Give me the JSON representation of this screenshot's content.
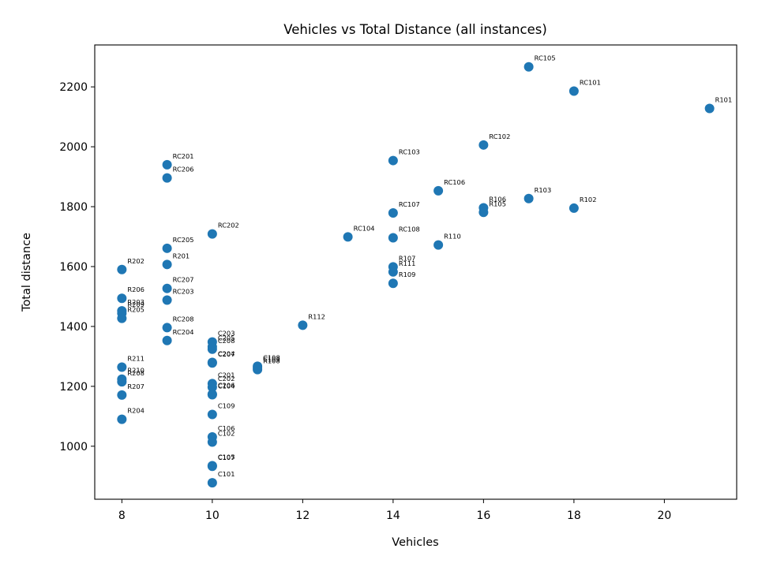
{
  "chart_data": {
    "type": "scatter",
    "title": "Vehicles vs Total Distance (all instances)",
    "xlabel": "Vehicles",
    "ylabel": "Total distance",
    "xlim": [
      7.4,
      21.6
    ],
    "ylim": [
      823,
      2340
    ],
    "xticks": [
      8,
      10,
      12,
      14,
      16,
      18,
      20
    ],
    "yticks": [
      1000,
      1200,
      1400,
      1600,
      1800,
      2000,
      2200
    ],
    "grid": false,
    "legend": "none",
    "marker_color": "#1f77b4",
    "points": [
      {
        "label": "RC105",
        "x": 17,
        "y": 2267
      },
      {
        "label": "RC101",
        "x": 18,
        "y": 2186
      },
      {
        "label": "R101",
        "x": 21,
        "y": 2128
      },
      {
        "label": "RC102",
        "x": 16,
        "y": 2006
      },
      {
        "label": "RC103",
        "x": 14,
        "y": 1954
      },
      {
        "label": "RC201",
        "x": 9,
        "y": 1940
      },
      {
        "label": "RC206",
        "x": 9,
        "y": 1896
      },
      {
        "label": "RC106",
        "x": 15,
        "y": 1853
      },
      {
        "label": "R103",
        "x": 17,
        "y": 1827
      },
      {
        "label": "R102",
        "x": 18,
        "y": 1795
      },
      {
        "label": "R106",
        "x": 16,
        "y": 1796
      },
      {
        "label": "R105",
        "x": 16,
        "y": 1781
      },
      {
        "label": "RC107",
        "x": 14,
        "y": 1779
      },
      {
        "label": "RC202",
        "x": 10,
        "y": 1709
      },
      {
        "label": "RC104",
        "x": 13,
        "y": 1699
      },
      {
        "label": "RC108",
        "x": 14,
        "y": 1696
      },
      {
        "label": "R110",
        "x": 15,
        "y": 1672
      },
      {
        "label": "RC205",
        "x": 9,
        "y": 1661
      },
      {
        "label": "R201",
        "x": 9,
        "y": 1607
      },
      {
        "label": "R107",
        "x": 14,
        "y": 1599
      },
      {
        "label": "R202",
        "x": 8,
        "y": 1590
      },
      {
        "label": "R111",
        "x": 14,
        "y": 1582
      },
      {
        "label": "R109",
        "x": 14,
        "y": 1544
      },
      {
        "label": "RC207",
        "x": 9,
        "y": 1527
      },
      {
        "label": "R206",
        "x": 8,
        "y": 1494
      },
      {
        "label": "RC203",
        "x": 9,
        "y": 1488
      },
      {
        "label": "R203",
        "x": 8,
        "y": 1452
      },
      {
        "label": "R209",
        "x": 8,
        "y": 1444
      },
      {
        "label": "R205",
        "x": 8,
        "y": 1427
      },
      {
        "label": "R112",
        "x": 12,
        "y": 1404
      },
      {
        "label": "RC208",
        "x": 9,
        "y": 1396
      },
      {
        "label": "RC204",
        "x": 9,
        "y": 1353
      },
      {
        "label": "C203",
        "x": 10,
        "y": 1348
      },
      {
        "label": "C205",
        "x": 10,
        "y": 1332
      },
      {
        "label": "C208",
        "x": 10,
        "y": 1324
      },
      {
        "label": "C204",
        "x": 10,
        "y": 1280
      },
      {
        "label": "C207",
        "x": 10,
        "y": 1278
      },
      {
        "label": "C108",
        "x": 11,
        "y": 1267
      },
      {
        "label": "C103",
        "x": 11,
        "y": 1262
      },
      {
        "label": "R108",
        "x": 11,
        "y": 1256
      },
      {
        "label": "R211",
        "x": 8,
        "y": 1264
      },
      {
        "label": "R210",
        "x": 8,
        "y": 1224
      },
      {
        "label": "R208",
        "x": 8,
        "y": 1215
      },
      {
        "label": "C201",
        "x": 10,
        "y": 1209
      },
      {
        "label": "C202",
        "x": 10,
        "y": 1197
      },
      {
        "label": "C206",
        "x": 10,
        "y": 1174
      },
      {
        "label": "C104",
        "x": 10,
        "y": 1172
      },
      {
        "label": "R207",
        "x": 8,
        "y": 1171
      },
      {
        "label": "C109",
        "x": 10,
        "y": 1106
      },
      {
        "label": "R204",
        "x": 8,
        "y": 1090
      },
      {
        "label": "C106",
        "x": 10,
        "y": 1031
      },
      {
        "label": "C102",
        "x": 10,
        "y": 1014
      },
      {
        "label": "C105",
        "x": 10,
        "y": 935
      },
      {
        "label": "C107",
        "x": 10,
        "y": 933
      },
      {
        "label": "C101",
        "x": 10,
        "y": 878
      }
    ]
  }
}
